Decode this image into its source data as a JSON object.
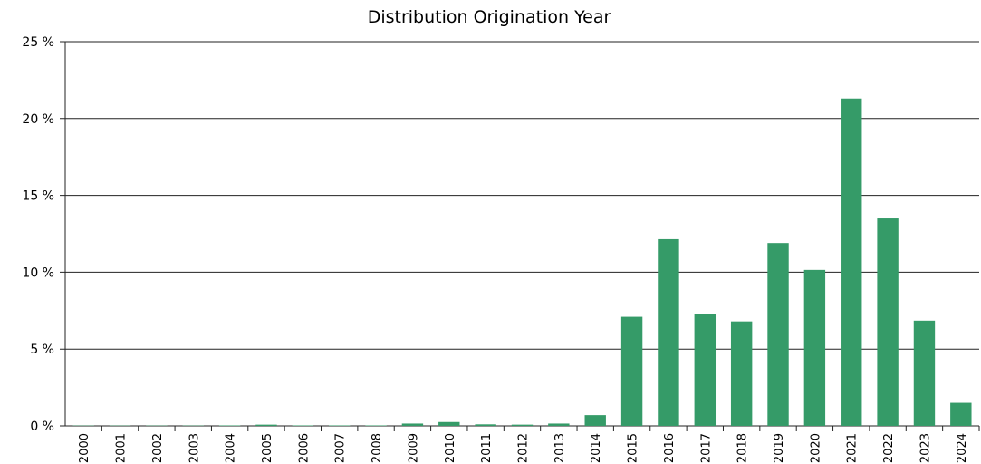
{
  "chart_data": {
    "type": "bar",
    "title": "Distribution Origination Year",
    "categories": [
      "2000",
      "2001",
      "2002",
      "2003",
      "2004",
      "2005",
      "2006",
      "2007",
      "2008",
      "2009",
      "2010",
      "2011",
      "2012",
      "2013",
      "2014",
      "2015",
      "2016",
      "2017",
      "2018",
      "2019",
      "2020",
      "2021",
      "2022",
      "2023",
      "2024"
    ],
    "values": [
      0.02,
      0.02,
      0.02,
      0.02,
      0.03,
      0.08,
      0.03,
      0.03,
      0.03,
      0.15,
      0.25,
      0.1,
      0.08,
      0.15,
      0.7,
      7.1,
      12.15,
      7.3,
      6.8,
      11.9,
      10.15,
      21.3,
      13.5,
      6.85,
      1.5
    ],
    "color": "#359b68",
    "ylim": [
      0,
      25
    ],
    "yticks": [
      {
        "value": 0,
        "label": "0 %"
      },
      {
        "value": 5,
        "label": "5 %"
      },
      {
        "value": 10,
        "label": "10 %"
      },
      {
        "value": 15,
        "label": "15 %"
      },
      {
        "value": 20,
        "label": "20 %"
      },
      {
        "value": 25,
        "label": "25 %"
      }
    ],
    "grid": true
  }
}
